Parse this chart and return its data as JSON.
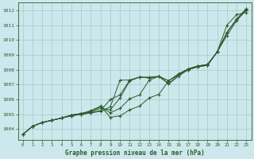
{
  "title": "Graphe pression niveau de la mer (hPa)",
  "bg_color": "#cce8ec",
  "grid_color": "#b0cccc",
  "line_color": "#2d5a2d",
  "xlim": [
    -0.5,
    23.5
  ],
  "ylim": [
    1003.3,
    1012.5
  ],
  "xticks": [
    0,
    1,
    2,
    3,
    4,
    5,
    6,
    7,
    8,
    9,
    10,
    11,
    12,
    13,
    14,
    15,
    16,
    17,
    18,
    19,
    20,
    21,
    22,
    23
  ],
  "yticks": [
    1004,
    1005,
    1006,
    1007,
    1008,
    1009,
    1010,
    1011,
    1012
  ],
  "series": [
    [
      1003.65,
      1004.2,
      1004.45,
      1004.6,
      1004.75,
      1004.9,
      1005.0,
      1005.1,
      1005.2,
      1005.5,
      1007.3,
      1007.3,
      1007.5,
      1007.45,
      1007.55,
      1007.05,
      1007.55,
      1008.0,
      1008.2,
      1008.3,
      1009.2,
      1011.0,
      1011.7,
      1011.85
    ],
    [
      1003.65,
      1004.2,
      1004.45,
      1004.6,
      1004.75,
      1004.9,
      1005.0,
      1005.1,
      1005.25,
      1006.0,
      1006.3,
      1007.3,
      1007.5,
      1007.45,
      1007.55,
      1007.05,
      1007.65,
      1008.0,
      1008.2,
      1008.3,
      1009.2,
      1010.3,
      1011.3,
      1012.0
    ],
    [
      1003.65,
      1004.2,
      1004.45,
      1004.6,
      1004.75,
      1004.95,
      1005.05,
      1005.15,
      1005.4,
      1005.3,
      1006.1,
      1007.25,
      1007.5,
      1007.5,
      1007.55,
      1007.25,
      1007.7,
      1008.0,
      1008.2,
      1008.3,
      1009.2,
      1010.5,
      1011.4,
      1012.05
    ],
    [
      1003.65,
      1004.2,
      1004.45,
      1004.6,
      1004.75,
      1004.95,
      1005.05,
      1005.2,
      1005.5,
      1005.1,
      1005.4,
      1006.05,
      1006.3,
      1007.3,
      1007.55,
      1007.25,
      1007.7,
      1008.05,
      1008.25,
      1008.35,
      1009.2,
      1010.5,
      1011.4,
      1012.1
    ],
    [
      1003.65,
      1004.2,
      1004.45,
      1004.6,
      1004.75,
      1004.95,
      1005.05,
      1005.25,
      1005.55,
      1004.8,
      1004.9,
      1005.3,
      1005.55,
      1006.1,
      1006.35,
      1007.25,
      1007.7,
      1008.05,
      1008.25,
      1008.35,
      1009.2,
      1010.5,
      1011.4,
      1012.1
    ]
  ]
}
